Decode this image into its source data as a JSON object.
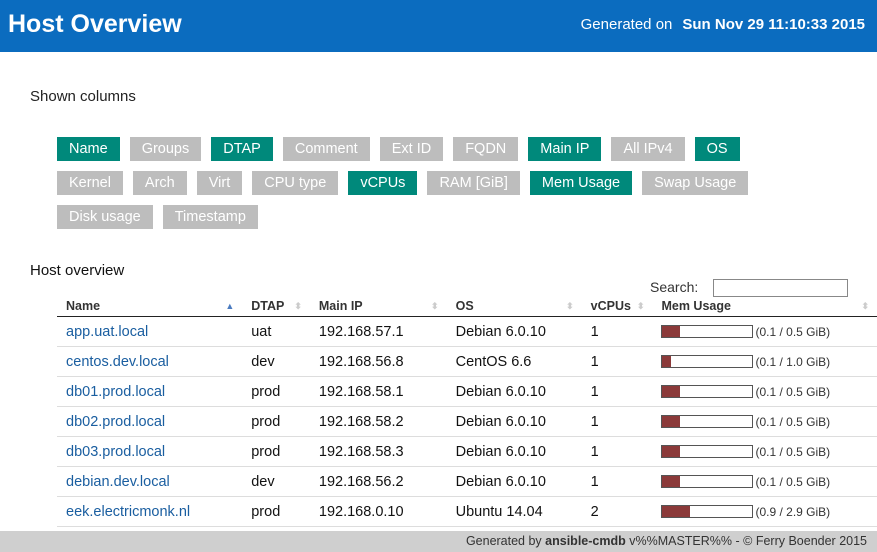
{
  "header": {
    "title": "Host Overview",
    "generated_label": "Generated on",
    "generated_date": "Sun Nov 29 11:10:33 2015"
  },
  "columns": {
    "title": "Shown columns",
    "buttons": [
      {
        "label": "Name",
        "active": true
      },
      {
        "label": "Groups",
        "active": false
      },
      {
        "label": "DTAP",
        "active": true
      },
      {
        "label": "Comment",
        "active": false
      },
      {
        "label": "Ext ID",
        "active": false
      },
      {
        "label": "FQDN",
        "active": false
      },
      {
        "label": "Main IP",
        "active": true
      },
      {
        "label": "All IPv4",
        "active": false
      },
      {
        "label": "OS",
        "active": true
      },
      {
        "label": "Kernel",
        "active": false
      },
      {
        "label": "Arch",
        "active": false
      },
      {
        "label": "Virt",
        "active": false
      },
      {
        "label": "CPU type",
        "active": false
      },
      {
        "label": "vCPUs",
        "active": true
      },
      {
        "label": "RAM [GiB]",
        "active": false
      },
      {
        "label": "Mem Usage",
        "active": true
      },
      {
        "label": "Swap Usage",
        "active": false
      },
      {
        "label": "Disk usage",
        "active": false
      },
      {
        "label": "Timestamp",
        "active": false
      }
    ]
  },
  "table": {
    "title": "Host overview",
    "search_label": "Search:",
    "headers": [
      "Name",
      "DTAP",
      "Main IP",
      "OS",
      "vCPUs",
      "Mem Usage"
    ],
    "rows": [
      {
        "name": "app.uat.local",
        "dtap": "uat",
        "ip": "192.168.57.1",
        "os": "Debian 6.0.10",
        "vcpus": 1,
        "mem_used": 0.1,
        "mem_total": 0.5,
        "mem_label": "(0.1 / 0.5 GiB)"
      },
      {
        "name": "centos.dev.local",
        "dtap": "dev",
        "ip": "192.168.56.8",
        "os": "CentOS 6.6",
        "vcpus": 1,
        "mem_used": 0.1,
        "mem_total": 1.0,
        "mem_label": "(0.1 / 1.0 GiB)"
      },
      {
        "name": "db01.prod.local",
        "dtap": "prod",
        "ip": "192.168.58.1",
        "os": "Debian 6.0.10",
        "vcpus": 1,
        "mem_used": 0.1,
        "mem_total": 0.5,
        "mem_label": "(0.1 / 0.5 GiB)"
      },
      {
        "name": "db02.prod.local",
        "dtap": "prod",
        "ip": "192.168.58.2",
        "os": "Debian 6.0.10",
        "vcpus": 1,
        "mem_used": 0.1,
        "mem_total": 0.5,
        "mem_label": "(0.1 / 0.5 GiB)"
      },
      {
        "name": "db03.prod.local",
        "dtap": "prod",
        "ip": "192.168.58.3",
        "os": "Debian 6.0.10",
        "vcpus": 1,
        "mem_used": 0.1,
        "mem_total": 0.5,
        "mem_label": "(0.1 / 0.5 GiB)"
      },
      {
        "name": "debian.dev.local",
        "dtap": "dev",
        "ip": "192.168.56.2",
        "os": "Debian 6.0.10",
        "vcpus": 1,
        "mem_used": 0.1,
        "mem_total": 0.5,
        "mem_label": "(0.1 / 0.5 GiB)"
      },
      {
        "name": "eek.electricmonk.nl",
        "dtap": "prod",
        "ip": "192.168.0.10",
        "os": "Ubuntu 14.04",
        "vcpus": 2,
        "mem_used": 0.9,
        "mem_total": 2.9,
        "mem_label": "(0.9 / 2.9 GiB)"
      }
    ]
  },
  "footer": {
    "prefix": "Generated by",
    "tool": "ansible-cmdb",
    "suffix": "v%%MASTER%% - © Ferry Boender 2015"
  }
}
